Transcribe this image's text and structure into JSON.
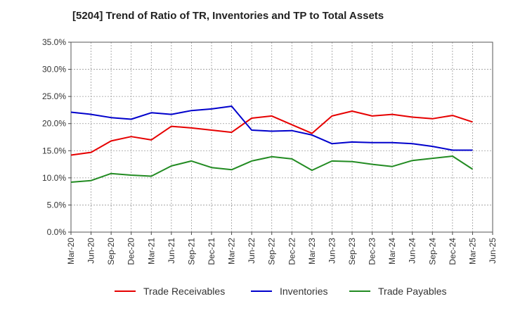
{
  "chart_data": {
    "type": "line",
    "title": "[5204]  Trend of Ratio of TR, Inventories and TP to Total Assets",
    "xlabel": "",
    "ylabel": "",
    "ylim": [
      0,
      35
    ],
    "y_ticks": [
      "0.0%",
      "5.0%",
      "10.0%",
      "15.0%",
      "20.0%",
      "25.0%",
      "30.0%",
      "35.0%"
    ],
    "x_tick_labels": [
      "Mar-20",
      "Jun-20",
      "Sep-20",
      "Dec-20",
      "Mar-21",
      "Jun-21",
      "Sep-21",
      "Dec-21",
      "Mar-22",
      "Jun-22",
      "Sep-22",
      "Dec-22",
      "Mar-23",
      "Jun-23",
      "Sep-23",
      "Dec-23",
      "Mar-24",
      "Jun-24",
      "Sep-24",
      "Dec-24",
      "Mar-25",
      "Jun-25"
    ],
    "categories": [
      "Mar-20",
      "Jun-20",
      "Sep-20",
      "Dec-20",
      "Mar-21",
      "Jun-21",
      "Sep-21",
      "Dec-21",
      "Mar-22",
      "Jun-22",
      "Sep-22",
      "Dec-22",
      "Mar-23",
      "Jun-23",
      "Sep-23",
      "Dec-23",
      "Mar-24",
      "Jun-24",
      "Sep-24",
      "Dec-24",
      "Mar-25"
    ],
    "grid": true,
    "legend_position": "bottom",
    "series": [
      {
        "name": "Trade Receivables",
        "color": "#e60000",
        "values": [
          14.2,
          14.7,
          16.8,
          17.6,
          17.0,
          19.5,
          19.2,
          18.8,
          18.4,
          21.0,
          21.4,
          19.8,
          18.2,
          21.4,
          22.3,
          21.4,
          21.7,
          21.2,
          20.9,
          21.5,
          20.3
        ]
      },
      {
        "name": "Inventories",
        "color": "#0000cc",
        "values": [
          22.1,
          21.7,
          21.1,
          20.8,
          22.0,
          21.7,
          22.4,
          22.7,
          23.2,
          18.8,
          18.6,
          18.7,
          17.9,
          16.3,
          16.6,
          16.5,
          16.5,
          16.3,
          15.8,
          15.1,
          15.1
        ]
      },
      {
        "name": "Trade Payables",
        "color": "#228b22",
        "values": [
          9.2,
          9.5,
          10.8,
          10.5,
          10.3,
          12.2,
          13.1,
          11.9,
          11.5,
          13.1,
          13.9,
          13.5,
          11.4,
          13.1,
          13.0,
          12.5,
          12.1,
          13.2,
          13.6,
          14.0,
          11.6
        ]
      }
    ]
  }
}
